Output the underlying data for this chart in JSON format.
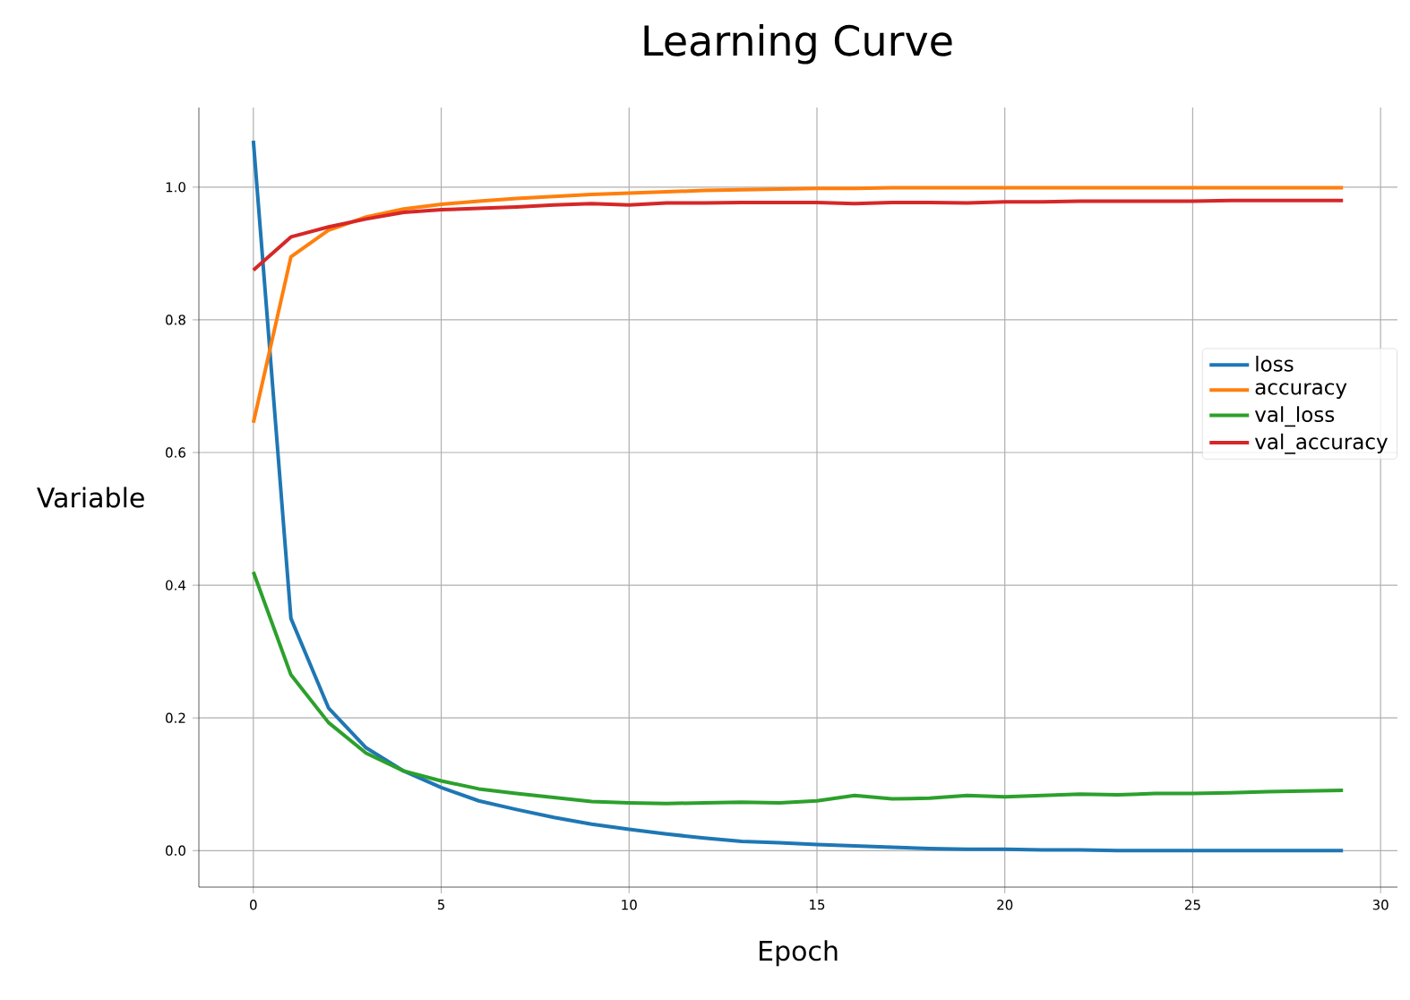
{
  "chart_data": {
    "type": "line",
    "title": "Learning Curve",
    "xlabel": "Epoch",
    "ylabel": "Variable",
    "x": [
      0,
      1,
      2,
      3,
      4,
      5,
      6,
      7,
      8,
      9,
      10,
      11,
      12,
      13,
      14,
      15,
      16,
      17,
      18,
      19,
      20,
      21,
      22,
      23,
      24,
      25,
      26,
      27,
      28,
      29
    ],
    "series": [
      {
        "name": "loss",
        "color": "#1f77b4",
        "values": [
          1.07,
          0.35,
          0.215,
          0.155,
          0.12,
          0.095,
          0.075,
          0.062,
          0.05,
          0.04,
          0.032,
          0.025,
          0.019,
          0.014,
          0.012,
          0.009,
          0.007,
          0.005,
          0.003,
          0.002,
          0.002,
          0.001,
          0.001,
          0.0,
          0.0,
          0.0,
          0.0,
          0.0,
          0.0,
          0.0
        ]
      },
      {
        "name": "accuracy",
        "color": "#ff7f0e",
        "values": [
          0.645,
          0.895,
          0.935,
          0.955,
          0.967,
          0.974,
          0.979,
          0.983,
          0.986,
          0.989,
          0.991,
          0.993,
          0.995,
          0.996,
          0.997,
          0.998,
          0.998,
          0.999,
          0.999,
          0.999,
          0.999,
          0.999,
          0.999,
          0.999,
          0.999,
          0.999,
          0.999,
          0.999,
          0.999,
          0.999
        ]
      },
      {
        "name": "val_loss",
        "color": "#2ca02c",
        "values": [
          0.42,
          0.265,
          0.193,
          0.147,
          0.12,
          0.105,
          0.093,
          0.086,
          0.08,
          0.074,
          0.072,
          0.071,
          0.072,
          0.073,
          0.072,
          0.075,
          0.083,
          0.078,
          0.079,
          0.083,
          0.081,
          0.083,
          0.085,
          0.084,
          0.086,
          0.086,
          0.087,
          0.089,
          0.09,
          0.091
        ]
      },
      {
        "name": "val_accuracy",
        "color": "#d62728",
        "values": [
          0.875,
          0.925,
          0.94,
          0.952,
          0.962,
          0.966,
          0.968,
          0.97,
          0.973,
          0.975,
          0.973,
          0.976,
          0.976,
          0.977,
          0.977,
          0.977,
          0.975,
          0.977,
          0.977,
          0.976,
          0.978,
          0.978,
          0.979,
          0.979,
          0.979,
          0.979,
          0.98,
          0.98,
          0.98,
          0.98
        ]
      }
    ],
    "xlim": [
      -1.45,
      30.45
    ],
    "ylim": [
      -0.055,
      1.12
    ],
    "xticks": [
      0,
      5,
      10,
      15,
      20,
      25,
      30
    ],
    "yticks": [
      {
        "value": 0,
        "label": "0.0"
      },
      {
        "value": 0.2,
        "label": "0.2"
      },
      {
        "value": 0.4,
        "label": "0.4"
      },
      {
        "value": 0.6,
        "label": "0.6"
      },
      {
        "value": 0.8,
        "label": "0.8"
      },
      {
        "value": 1.0,
        "label": "1.0"
      }
    ],
    "grid": true,
    "legend": "right",
    "marker": "none",
    "line_style": "solid"
  }
}
